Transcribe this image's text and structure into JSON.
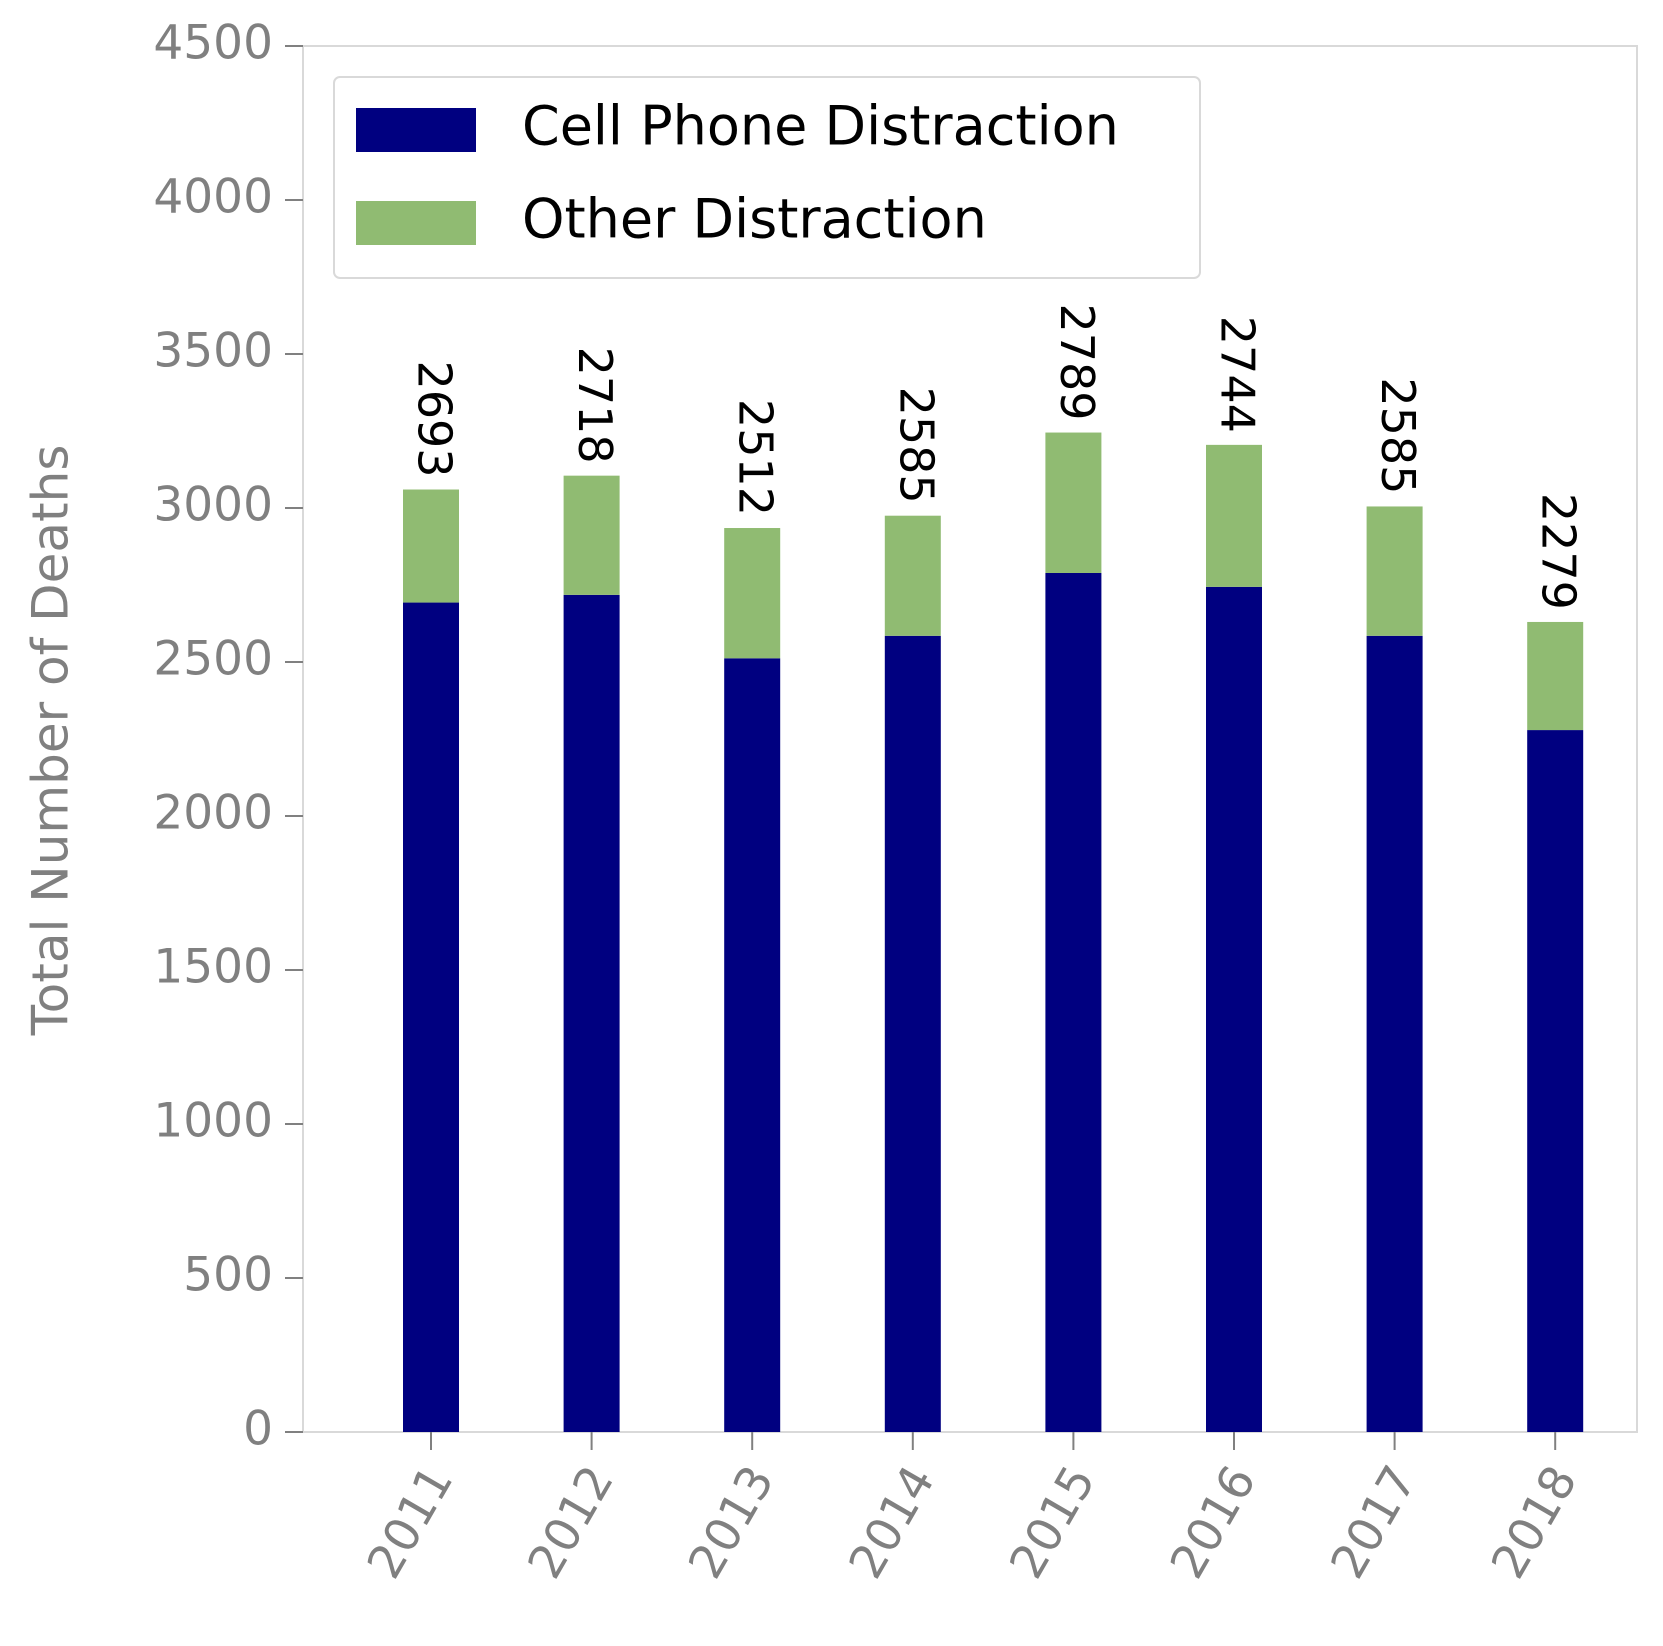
{
  "chart_data": {
    "type": "stacked_bar",
    "y_label": "Total Number of Deaths",
    "categories": [
      "2011",
      "2012",
      "2013",
      "2014",
      "2015",
      "2016",
      "2017",
      "2018"
    ],
    "series": [
      {
        "name": "Cell Phone Distraction",
        "color": "#000080",
        "values": [
          2693,
          2718,
          2512,
          2585,
          2789,
          2744,
          2585,
          2279
        ]
      },
      {
        "name": "Other Distraction",
        "color": "#90bb72",
        "values": [
          367,
          387,
          423,
          390,
          456,
          461,
          420,
          351
        ]
      }
    ],
    "ylim": [
      0,
      4500
    ],
    "yticks": [
      0,
      500,
      1000,
      1500,
      2000,
      2500,
      3000,
      3500,
      4000,
      4500
    ],
    "legend": "upper left"
  }
}
